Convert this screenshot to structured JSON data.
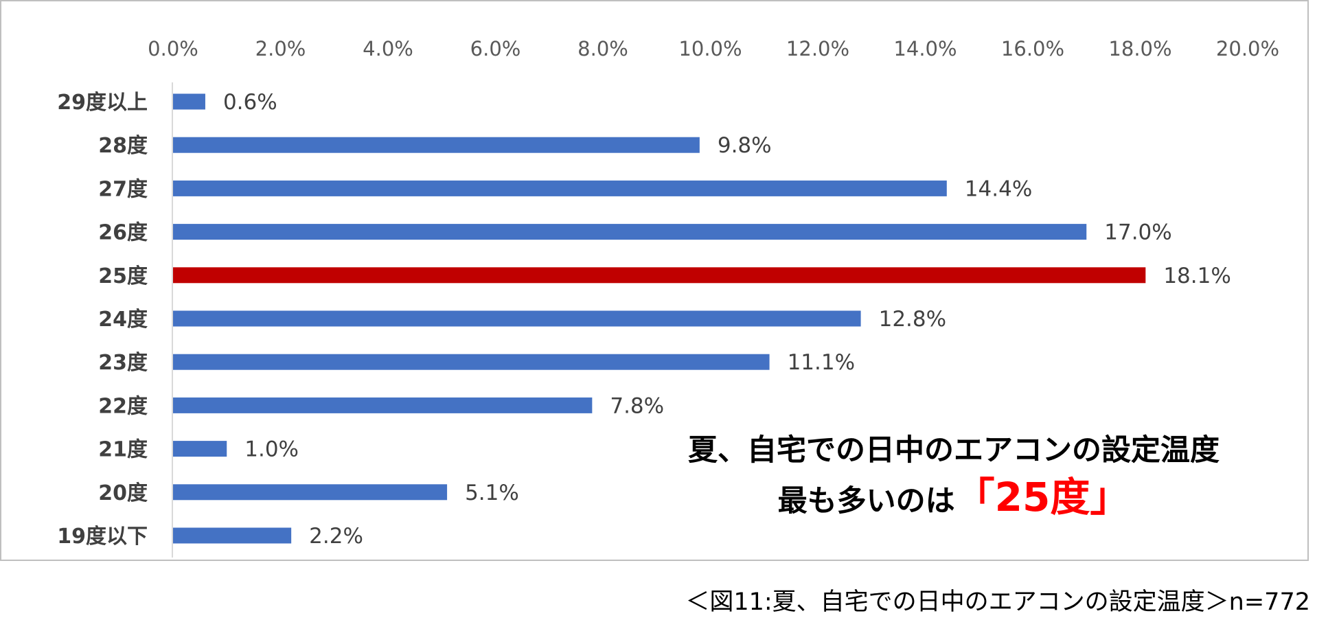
{
  "chart_data": {
    "type": "bar",
    "orientation": "horizontal",
    "categories": [
      "29度以上",
      "28度",
      "27度",
      "26度",
      "25度",
      "24度",
      "23度",
      "22度",
      "21度",
      "20度",
      "19度以下"
    ],
    "values": [
      0.6,
      9.8,
      14.4,
      17.0,
      18.1,
      12.8,
      11.1,
      7.8,
      1.0,
      5.1,
      2.2
    ],
    "data_labels": [
      "0.6%",
      "9.8%",
      "14.4%",
      "17.0%",
      "18.1%",
      "12.8%",
      "11.1%",
      "7.8%",
      "1.0%",
      "5.1%",
      "2.2%"
    ],
    "highlight_index": 4,
    "xlim": [
      0,
      20
    ],
    "x_ticks": [
      "0.0%",
      "2.0%",
      "4.0%",
      "6.0%",
      "8.0%",
      "10.0%",
      "12.0%",
      "14.0%",
      "16.0%",
      "18.0%",
      "20.0%"
    ],
    "x_axis_position": "top",
    "grid": false,
    "colors": {
      "bar": "#4472c4",
      "highlight": "#c00000",
      "axis": "#d9d9d9"
    },
    "annotation": {
      "line1": "夏、自宅での日中のエアコンの設定温度",
      "line2_prefix": "最も多いのは",
      "line2_emphasis": "「25度」",
      "emphasis_color": "#ff0000"
    }
  },
  "caption": "＜図11:夏、自宅での日中のエアコンの設定温度＞n=772"
}
